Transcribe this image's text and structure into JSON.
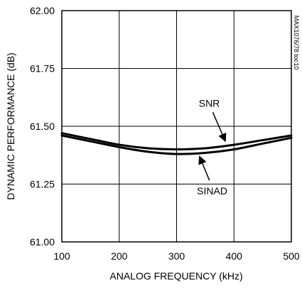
{
  "chart_data": {
    "type": "line",
    "title": "",
    "xlabel": "ANALOG FREQUENCY (kHz)",
    "ylabel": "DYNAMIC PERFORMANCE (dB)",
    "xlim": [
      100,
      500
    ],
    "ylim": [
      61.0,
      62.0
    ],
    "x_ticks": [
      "100",
      "200",
      "300",
      "400",
      "500"
    ],
    "y_ticks": [
      "61.00",
      "61.25",
      "61.50",
      "61.75",
      "62.00"
    ],
    "grid": true,
    "part_number": "MAX1076/78 toc10",
    "series": [
      {
        "name": "SNR",
        "x": [
          100,
          150,
          200,
          250,
          300,
          350,
          400,
          450,
          500
        ],
        "values": [
          61.47,
          61.445,
          61.42,
          61.405,
          61.4,
          61.405,
          61.42,
          61.44,
          61.46
        ]
      },
      {
        "name": "SINAD",
        "x": [
          100,
          150,
          200,
          250,
          300,
          350,
          400,
          450,
          500
        ],
        "values": [
          61.46,
          61.435,
          61.41,
          61.39,
          61.38,
          61.385,
          61.4,
          61.425,
          61.45
        ]
      }
    ],
    "annotations": [
      {
        "text": "SNR",
        "label_at": [
          357,
          61.585
        ],
        "arrow_to": [
          385,
          61.435
        ]
      },
      {
        "text": "SINAD",
        "label_at": [
          362,
          61.205
        ],
        "arrow_to": [
          340,
          61.37
        ]
      }
    ]
  }
}
